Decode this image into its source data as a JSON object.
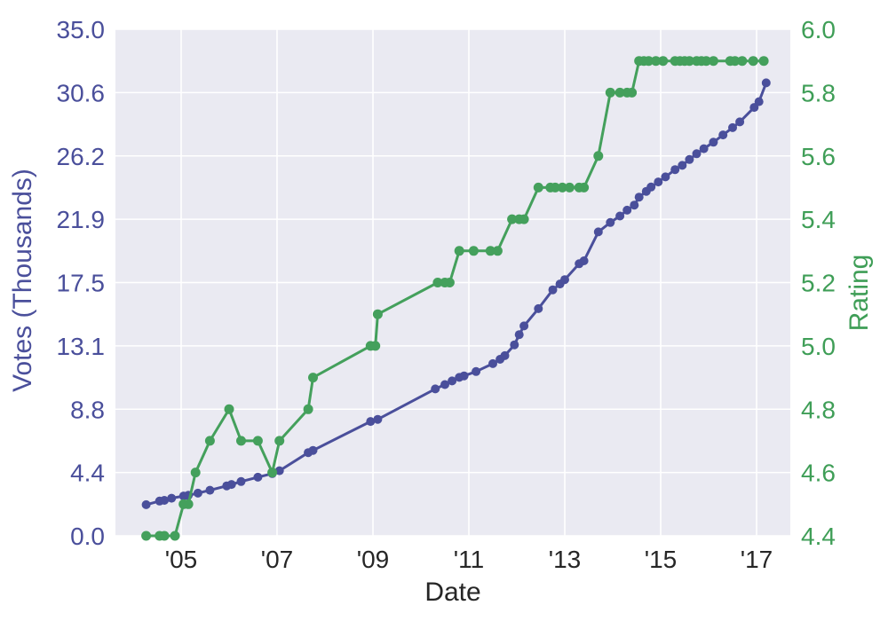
{
  "chart_data": {
    "type": "line",
    "title": "",
    "xlabel": "Date",
    "ylabel_left": "Votes (Thousands)",
    "ylabel_right": "Rating",
    "grid": true,
    "legend_position": "none",
    "plot_background": "#eaeaf2",
    "grid_color": "#ffffff",
    "x_range": [
      2003.63,
      2017.7
    ],
    "left_range": [
      0,
      35
    ],
    "right_range": [
      4.4,
      6.0
    ],
    "x_ticks": {
      "years": [
        2005,
        2007,
        2009,
        2011,
        2013,
        2015,
        2017
      ],
      "labels": [
        "'05",
        "'07",
        "'09",
        "'11",
        "'13",
        "'15",
        "'17"
      ]
    },
    "left_ticks": {
      "values": [
        0,
        4.375,
        8.75,
        13.125,
        17.5,
        21.875,
        26.25,
        30.625,
        35
      ],
      "labels": [
        "0.0",
        "4.4",
        "8.8",
        "13.1",
        "17.5",
        "21.9",
        "26.2",
        "30.6",
        "35.0"
      ],
      "color": "#4a4f9b"
    },
    "right_ticks": {
      "values": [
        4.4,
        4.6,
        4.8,
        5.0,
        5.2,
        5.4,
        5.6,
        5.8,
        6.0
      ],
      "labels": [
        "4.4",
        "4.6",
        "4.8",
        "5.0",
        "5.2",
        "5.4",
        "5.6",
        "5.8",
        "6.0"
      ],
      "color": "#3f9e57"
    },
    "xtick_color": "#262626",
    "series": [
      {
        "name": "votes_thousands",
        "axis": "left",
        "color": "#4a4f9b",
        "marker_radius": 5,
        "points": [
          [
            2004.27,
            2.15
          ],
          [
            2004.55,
            2.4
          ],
          [
            2004.65,
            2.45
          ],
          [
            2004.8,
            2.6
          ],
          [
            2005.05,
            2.75
          ],
          [
            2005.15,
            2.8
          ],
          [
            2005.35,
            2.95
          ],
          [
            2005.6,
            3.15
          ],
          [
            2005.95,
            3.45
          ],
          [
            2006.05,
            3.55
          ],
          [
            2006.25,
            3.75
          ],
          [
            2006.6,
            4.05
          ],
          [
            2006.9,
            4.3
          ],
          [
            2007.05,
            4.5
          ],
          [
            2007.65,
            5.75
          ],
          [
            2007.75,
            5.9
          ],
          [
            2008.95,
            7.9
          ],
          [
            2009.1,
            8.05
          ],
          [
            2010.3,
            10.15
          ],
          [
            2010.5,
            10.45
          ],
          [
            2010.65,
            10.7
          ],
          [
            2010.8,
            10.95
          ],
          [
            2010.9,
            11.05
          ],
          [
            2011.15,
            11.35
          ],
          [
            2011.5,
            11.9
          ],
          [
            2011.65,
            12.2
          ],
          [
            2011.75,
            12.45
          ],
          [
            2011.95,
            13.2
          ],
          [
            2012.05,
            13.9
          ],
          [
            2012.15,
            14.5
          ],
          [
            2012.45,
            15.7
          ],
          [
            2012.75,
            17.0
          ],
          [
            2012.9,
            17.4
          ],
          [
            2013.0,
            17.7
          ],
          [
            2013.3,
            18.8
          ],
          [
            2013.4,
            19.0
          ],
          [
            2013.7,
            21.0
          ],
          [
            2013.95,
            21.65
          ],
          [
            2014.15,
            22.1
          ],
          [
            2014.3,
            22.5
          ],
          [
            2014.45,
            22.85
          ],
          [
            2014.55,
            23.4
          ],
          [
            2014.7,
            23.8
          ],
          [
            2014.8,
            24.1
          ],
          [
            2014.95,
            24.45
          ],
          [
            2015.1,
            24.8
          ],
          [
            2015.3,
            25.3
          ],
          [
            2015.45,
            25.6
          ],
          [
            2015.6,
            26.0
          ],
          [
            2015.75,
            26.4
          ],
          [
            2015.9,
            26.75
          ],
          [
            2016.1,
            27.2
          ],
          [
            2016.3,
            27.7
          ],
          [
            2016.5,
            28.2
          ],
          [
            2016.65,
            28.6
          ],
          [
            2016.95,
            29.6
          ],
          [
            2017.05,
            30.0
          ],
          [
            2017.2,
            31.3
          ]
        ]
      },
      {
        "name": "rating",
        "axis": "right",
        "color": "#44a05c",
        "marker_radius": 5.5,
        "points": [
          [
            2004.27,
            4.4
          ],
          [
            2004.55,
            4.4
          ],
          [
            2004.65,
            4.4
          ],
          [
            2004.87,
            4.4
          ],
          [
            2005.05,
            4.5
          ],
          [
            2005.15,
            4.5
          ],
          [
            2005.3,
            4.6
          ],
          [
            2005.6,
            4.7
          ],
          [
            2006.0,
            4.8
          ],
          [
            2006.25,
            4.7
          ],
          [
            2006.6,
            4.7
          ],
          [
            2006.9,
            4.6
          ],
          [
            2007.05,
            4.7
          ],
          [
            2007.65,
            4.8
          ],
          [
            2007.75,
            4.9
          ],
          [
            2008.95,
            5.0
          ],
          [
            2009.05,
            5.0
          ],
          [
            2009.1,
            5.1
          ],
          [
            2010.35,
            5.2
          ],
          [
            2010.5,
            5.2
          ],
          [
            2010.6,
            5.2
          ],
          [
            2010.8,
            5.3
          ],
          [
            2011.1,
            5.3
          ],
          [
            2011.45,
            5.3
          ],
          [
            2011.6,
            5.3
          ],
          [
            2011.9,
            5.4
          ],
          [
            2012.05,
            5.4
          ],
          [
            2012.15,
            5.4
          ],
          [
            2012.45,
            5.5
          ],
          [
            2012.7,
            5.5
          ],
          [
            2012.8,
            5.5
          ],
          [
            2012.95,
            5.5
          ],
          [
            2013.1,
            5.5
          ],
          [
            2013.3,
            5.5
          ],
          [
            2013.4,
            5.5
          ],
          [
            2013.7,
            5.6
          ],
          [
            2013.95,
            5.8
          ],
          [
            2014.15,
            5.8
          ],
          [
            2014.3,
            5.8
          ],
          [
            2014.4,
            5.8
          ],
          [
            2014.55,
            5.9
          ],
          [
            2014.65,
            5.9
          ],
          [
            2014.75,
            5.9
          ],
          [
            2014.9,
            5.9
          ],
          [
            2015.05,
            5.9
          ],
          [
            2015.3,
            5.9
          ],
          [
            2015.4,
            5.9
          ],
          [
            2015.5,
            5.9
          ],
          [
            2015.6,
            5.9
          ],
          [
            2015.75,
            5.9
          ],
          [
            2015.85,
            5.9
          ],
          [
            2015.95,
            5.9
          ],
          [
            2016.1,
            5.9
          ],
          [
            2016.45,
            5.9
          ],
          [
            2016.55,
            5.9
          ],
          [
            2016.7,
            5.9
          ],
          [
            2016.93,
            5.9
          ],
          [
            2017.15,
            5.9
          ]
        ]
      }
    ]
  }
}
